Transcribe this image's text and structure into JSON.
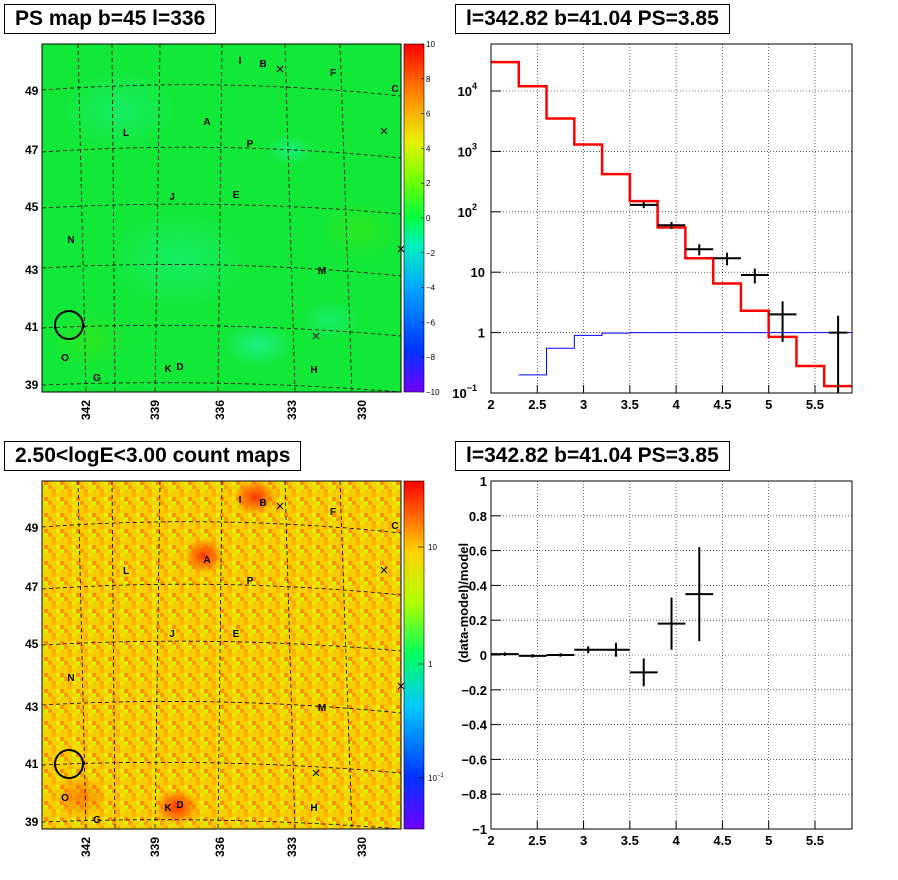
{
  "panels": {
    "top_left": {
      "title": "PS map b=45 l=336",
      "y_ticks": [
        "49",
        "47",
        "45",
        "43",
        "41",
        "39"
      ],
      "x_ticks": [
        "342",
        "339",
        "336",
        "333",
        "330"
      ],
      "colorbar_ticks": [
        "10",
        "8",
        "6",
        "4",
        "2",
        "0",
        "−2",
        "−4",
        "−6",
        "−8",
        "−10"
      ],
      "sources": [
        "I",
        "B",
        "F",
        "C",
        "L",
        "A",
        "P",
        "J",
        "E",
        "N",
        "M",
        "O",
        "G",
        "K",
        "D",
        "H"
      ]
    },
    "top_right": {
      "title": "l=342.82 b=41.04 PS=3.85",
      "x_ticks": [
        "2",
        "2.5",
        "3",
        "3.5",
        "4",
        "4.5",
        "5",
        "5.5"
      ],
      "y_ticks": [
        "10",
        "10",
        "10",
        "10",
        "1",
        "10"
      ],
      "y_tick_exps": [
        "4",
        "3",
        "2",
        "",
        "",
        "−1"
      ]
    },
    "bottom_left": {
      "title": "2.50<logE<3.00 count maps",
      "y_ticks": [
        "49",
        "47",
        "45",
        "43",
        "41",
        "39"
      ],
      "x_ticks": [
        "342",
        "339",
        "336",
        "333",
        "330"
      ],
      "colorbar_ticks": [
        "10",
        "1",
        "10"
      ],
      "colorbar_tick_exp": "−1",
      "sources": [
        "I",
        "B",
        "F",
        "C",
        "L",
        "A",
        "P",
        "J",
        "E",
        "N",
        "M",
        "O",
        "G",
        "K",
        "D",
        "H"
      ]
    },
    "bottom_right": {
      "title": "l=342.82 b=41.04 PS=3.85",
      "ylabel": "(data-model)/model",
      "x_ticks": [
        "2",
        "2.5",
        "3",
        "3.5",
        "4",
        "4.5",
        "5",
        "5.5"
      ],
      "y_ticks": [
        "1",
        "0.8",
        "0.6",
        "0.4",
        "0.2",
        "0",
        "−0.2",
        "−0.4",
        "−0.6",
        "−0.8",
        "−1"
      ]
    }
  },
  "chart_data": [
    {
      "type": "heatmap",
      "title": "PS map b=45 l=336",
      "xlabel": "",
      "ylabel": "",
      "x_ticks": [
        342,
        339,
        336,
        333,
        330
      ],
      "y_ticks": [
        49,
        47,
        45,
        43,
        41,
        39
      ],
      "color_scale": {
        "min": -10,
        "max": 10,
        "colors": [
          "#7f00ff",
          "#0040ff",
          "#00c0ff",
          "#00ff80",
          "#40ff00",
          "#ffff00",
          "#ff8000",
          "#ff0000"
        ]
      },
      "dominant_value": 1,
      "sources": [
        "I",
        "B",
        "F",
        "C",
        "L",
        "A",
        "P",
        "J",
        "E",
        "N",
        "M",
        "O",
        "G",
        "K",
        "D",
        "H"
      ]
    },
    {
      "type": "line",
      "title": "l=342.82 b=41.04 PS=3.85",
      "xlim": [
        2,
        5.9
      ],
      "ylim": [
        0.1,
        60000
      ],
      "yscale": "log",
      "series": [
        {
          "values": [
            [
              2.0,
              30000
            ],
            [
              2.3,
              12000
            ],
            [
              2.6,
              3500
            ],
            [
              2.9,
              1300
            ],
            [
              3.2,
              420
            ],
            [
              3.5,
              150
            ],
            [
              3.8,
              55
            ],
            [
              4.1,
              17
            ],
            [
              4.4,
              6.5
            ],
            [
              4.7,
              2.3
            ],
            [
              5.0,
              0.85
            ],
            [
              5.3,
              0.28
            ],
            [
              5.6,
              0.13
            ]
          ],
          "color": "#ff0000"
        },
        {
          "values": [
            [
              2.3,
              0.2
            ],
            [
              2.6,
              0.55
            ],
            [
              2.9,
              0.9
            ],
            [
              3.2,
              0.98
            ],
            [
              3.5,
              1.0
            ],
            [
              5.9,
              1.0
            ]
          ],
          "color": "#0000ff"
        },
        {
          "values": [
            [
              3.65,
              130
            ],
            [
              3.95,
              60
            ],
            [
              4.25,
              24
            ],
            [
              4.55,
              17
            ],
            [
              4.85,
              9
            ],
            [
              5.15,
              2
            ],
            [
              5.75,
              1
            ]
          ],
          "errors": [
            [
              0.15,
              15
            ],
            [
              0.15,
              8
            ],
            [
              0.15,
              5
            ],
            [
              0.15,
              4
            ],
            [
              0.15,
              2.5
            ],
            [
              0.15,
              1.3
            ],
            [
              0.1,
              0.9
            ]
          ],
          "color": "#000000"
        }
      ]
    },
    {
      "type": "heatmap",
      "title": "2.50<logE<3.00 count maps",
      "x_ticks": [
        342,
        339,
        336,
        333,
        330
      ],
      "y_ticks": [
        49,
        47,
        45,
        43,
        41,
        39
      ],
      "color_scale": {
        "min": 0.05,
        "max": 40,
        "scale": "log",
        "colors": [
          "#7f00ff",
          "#0040ff",
          "#00c0ff",
          "#00ff80",
          "#40ff00",
          "#ffff00",
          "#ff8000",
          "#ff0000"
        ]
      },
      "sources": [
        "I",
        "B",
        "F",
        "C",
        "L",
        "A",
        "P",
        "J",
        "E",
        "N",
        "M",
        "O",
        "G",
        "K",
        "D",
        "H"
      ]
    },
    {
      "type": "scatter",
      "title": "l=342.82 b=41.04 PS=3.85",
      "ylabel": "(data-model)/model",
      "xlim": [
        2,
        5.9
      ],
      "ylim": [
        -1,
        1
      ],
      "points": [
        {
          "x": 2.15,
          "y": 0.005,
          "xerr": 0.15,
          "yerr": 0.01
        },
        {
          "x": 2.45,
          "y": -0.005,
          "xerr": 0.15,
          "yerr": 0.01
        },
        {
          "x": 2.75,
          "y": 0.0,
          "xerr": 0.15,
          "yerr": 0.01
        },
        {
          "x": 3.05,
          "y": 0.03,
          "xerr": 0.15,
          "yerr": 0.02
        },
        {
          "x": 3.35,
          "y": 0.03,
          "xerr": 0.15,
          "yerr": 0.04
        },
        {
          "x": 3.65,
          "y": -0.1,
          "xerr": 0.15,
          "yerr": 0.08
        },
        {
          "x": 3.95,
          "y": 0.18,
          "xerr": 0.15,
          "yerr": 0.15
        },
        {
          "x": 4.25,
          "y": 0.35,
          "xerr": 0.15,
          "yerr": 0.27
        }
      ]
    }
  ]
}
